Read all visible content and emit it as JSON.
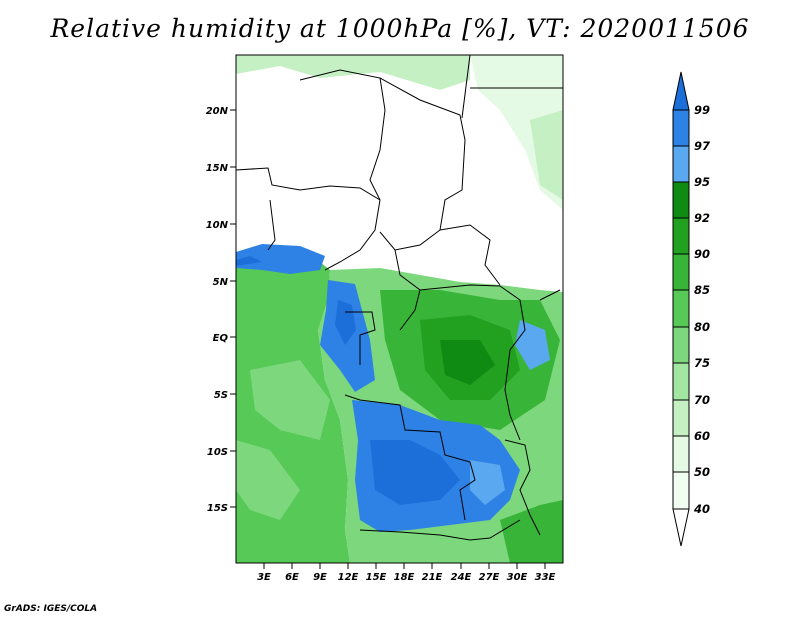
{
  "title": "Relative humidity at 1000hPa [%], VT: 2020011506",
  "credit": "GrADS: IGES/COLA",
  "axes": {
    "lat_labels": [
      "20N",
      "15N",
      "10N",
      "5N",
      "EQ",
      "5S",
      "10S",
      "15S"
    ],
    "lon_labels": [
      "3E",
      "6E",
      "9E",
      "12E",
      "15E",
      "18E",
      "21E",
      "24E",
      "27E",
      "30E",
      "33E"
    ]
  },
  "colorbar": {
    "levels": [
      "99",
      "97",
      "95",
      "92",
      "90",
      "85",
      "80",
      "75",
      "70",
      "60",
      "50",
      "40"
    ],
    "colors": [
      "#1c6ed8",
      "#2e82e6",
      "#5aa8f0",
      "#0f8a12",
      "#22a020",
      "#38b438",
      "#56c956",
      "#7dd87d",
      "#a2e6a2",
      "#c4f0c4",
      "#e4fae4",
      "#ffffff"
    ]
  }
}
